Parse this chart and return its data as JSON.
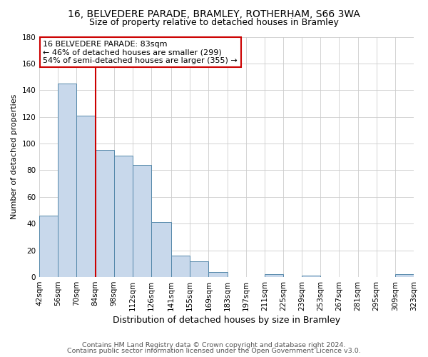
{
  "title": "16, BELVEDERE PARADE, BRAMLEY, ROTHERHAM, S66 3WA",
  "subtitle": "Size of property relative to detached houses in Bramley",
  "xlabel": "Distribution of detached houses by size in Bramley",
  "ylabel": "Number of detached properties",
  "bar_color": "#c8d8eb",
  "bar_edge_color": "#5588aa",
  "background_color": "#ffffff",
  "grid_color": "#cccccc",
  "vline_x": 84,
  "vline_color": "#cc0000",
  "bin_edges": [
    42,
    56,
    70,
    84,
    98,
    112,
    126,
    141,
    155,
    169,
    183,
    197,
    211,
    225,
    239,
    253,
    267,
    281,
    295,
    309,
    323
  ],
  "bin_heights": [
    46,
    145,
    121,
    95,
    91,
    84,
    41,
    16,
    12,
    4,
    0,
    0,
    2,
    0,
    1,
    0,
    0,
    0,
    0,
    2
  ],
  "tick_labels": [
    "42sqm",
    "56sqm",
    "70sqm",
    "84sqm",
    "98sqm",
    "112sqm",
    "126sqm",
    "141sqm",
    "155sqm",
    "169sqm",
    "183sqm",
    "197sqm",
    "211sqm",
    "225sqm",
    "239sqm",
    "253sqm",
    "267sqm",
    "281sqm",
    "295sqm",
    "309sqm",
    "323sqm"
  ],
  "ylim": [
    0,
    180
  ],
  "yticks": [
    0,
    20,
    40,
    60,
    80,
    100,
    120,
    140,
    160,
    180
  ],
  "annotation_line1": "16 BELVEDERE PARADE: 83sqm",
  "annotation_line2": "← 46% of detached houses are smaller (299)",
  "annotation_line3": "54% of semi-detached houses are larger (355) →",
  "footnote1": "Contains HM Land Registry data © Crown copyright and database right 2024.",
  "footnote2": "Contains public sector information licensed under the Open Government Licence v3.0.",
  "title_fontsize": 10,
  "subtitle_fontsize": 9,
  "xlabel_fontsize": 9,
  "ylabel_fontsize": 8,
  "tick_fontsize": 7.5,
  "annotation_fontsize": 8,
  "footnote_fontsize": 6.8
}
